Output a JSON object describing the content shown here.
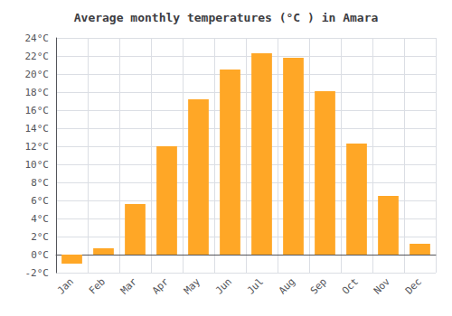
{
  "chart_data": {
    "type": "bar",
    "title": "Average monthly temperatures (°C ) in Amara",
    "categories": [
      "Jan",
      "Feb",
      "Mar",
      "Apr",
      "May",
      "Jun",
      "Jul",
      "Aug",
      "Sep",
      "Oct",
      "Nov",
      "Dec"
    ],
    "values": [
      -1.0,
      0.7,
      5.6,
      12.0,
      17.2,
      20.5,
      22.3,
      21.8,
      18.1,
      12.3,
      6.5,
      1.2
    ],
    "color": "#FFA726",
    "ylim": [
      -2,
      24
    ],
    "yticks": [
      {
        "value": -2,
        "label": "-2°C"
      },
      {
        "value": 0,
        "label": "0°C"
      },
      {
        "value": 2,
        "label": "2°C"
      },
      {
        "value": 4,
        "label": "4°C"
      },
      {
        "value": 6,
        "label": "6°C"
      },
      {
        "value": 8,
        "label": "8°C"
      },
      {
        "value": 10,
        "label": "10°C"
      },
      {
        "value": 12,
        "label": "12°C"
      },
      {
        "value": 14,
        "label": "14°C"
      },
      {
        "value": 16,
        "label": "16°C"
      },
      {
        "value": 18,
        "label": "18°C"
      },
      {
        "value": 20,
        "label": "20°C"
      },
      {
        "value": 22,
        "label": "22°C"
      },
      {
        "value": 24,
        "label": "24°C"
      }
    ],
    "grid": true
  }
}
